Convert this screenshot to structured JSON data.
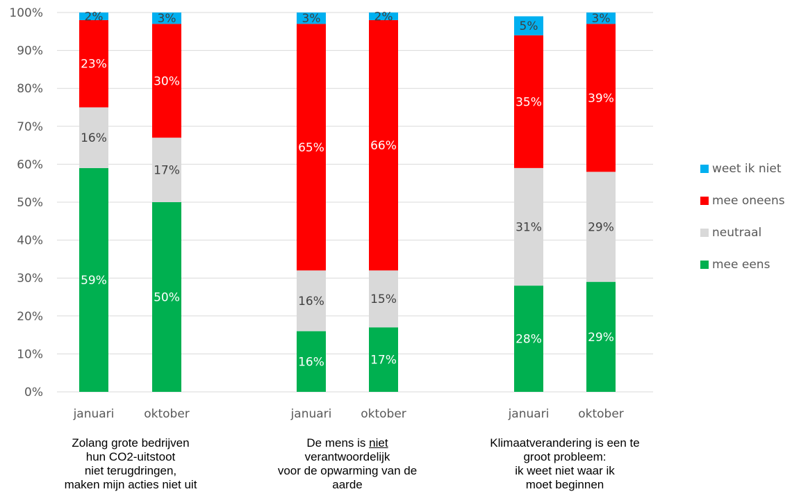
{
  "chart_data": {
    "type": "bar",
    "stacked": true,
    "percent": true,
    "ylim": [
      0,
      100
    ],
    "yticks": [
      "0%",
      "10%",
      "20%",
      "30%",
      "40%",
      "50%",
      "60%",
      "70%",
      "80%",
      "90%",
      "100%"
    ],
    "grid": true,
    "legend_position": "right",
    "groups": [
      {
        "label_lines": [
          [
            "Zolang grote bedrijven"
          ],
          [
            "hun CO2-uitstoot"
          ],
          [
            "niet terugdringen,"
          ],
          [
            "maken mijn acties niet uit"
          ]
        ],
        "bars": [
          {
            "category": "januari",
            "values": {
              "mee eens": 59,
              "neutraal": 16,
              "mee oneens": 23,
              "weet ik niet": 2
            }
          },
          {
            "category": "oktober",
            "values": {
              "mee eens": 50,
              "neutraal": 17,
              "mee oneens": 30,
              "weet ik niet": 3
            }
          }
        ]
      },
      {
        "label_lines": [
          [
            "De mens is ",
            "niet"
          ],
          [
            "verantwoordelijk"
          ],
          [
            "voor de opwarming van de"
          ],
          [
            "aarde"
          ]
        ],
        "bars": [
          {
            "category": "januari",
            "values": {
              "mee eens": 16,
              "neutraal": 16,
              "mee oneens": 65,
              "weet ik niet": 3
            }
          },
          {
            "category": "oktober",
            "values": {
              "mee eens": 17,
              "neutraal": 15,
              "mee oneens": 66,
              "weet ik niet": 2
            }
          }
        ]
      },
      {
        "label_lines": [
          [
            "Klimaatverandering is een te"
          ],
          [
            "groot probleem:"
          ],
          [
            "ik weet niet waar ik"
          ],
          [
            "moet beginnen"
          ]
        ],
        "bars": [
          {
            "category": "januari",
            "values": {
              "mee eens": 28,
              "neutraal": 31,
              "mee oneens": 35,
              "weet ik niet": 5
            }
          },
          {
            "category": "oktober",
            "values": {
              "mee eens": 29,
              "neutraal": 29,
              "mee oneens": 39,
              "weet ik niet": 3
            }
          }
        ]
      }
    ],
    "series": [
      {
        "name": "mee eens",
        "color": "#00b050",
        "label_color": "#ffffff"
      },
      {
        "name": "neutraal",
        "color": "#d9d9d9",
        "label_color": "#404040"
      },
      {
        "name": "mee oneens",
        "color": "#ff0000",
        "label_color": "#ffffff"
      },
      {
        "name": "weet ik niet",
        "color": "#00b0f0",
        "label_color": "#404040"
      }
    ],
    "legend_order": [
      "weet ik niet",
      "mee oneens",
      "neutraal",
      "mee eens"
    ]
  }
}
